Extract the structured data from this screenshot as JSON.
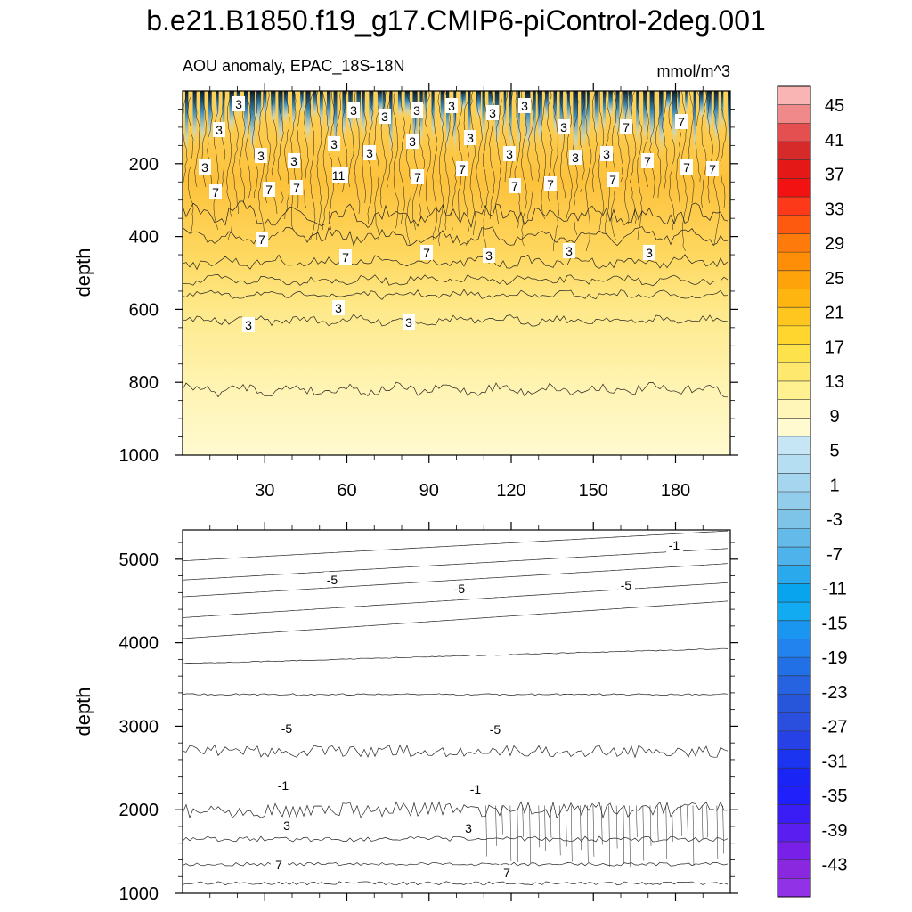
{
  "title": "b.e21.B1850.f19_g17.CMIP6-piControl-2deg.001",
  "chart_data": [
    {
      "type": "heatmap",
      "subtitle_left": "AOU anomaly, EPAC_18S-18N",
      "subtitle_right": "mmol/m^3",
      "ylabel": "depth",
      "ylim": [
        1000,
        0
      ],
      "yticks": [
        "200",
        "400",
        "600",
        "800",
        "1000"
      ],
      "xlim": [
        0,
        200
      ],
      "xticks": [
        "30",
        "60",
        "90",
        "120",
        "150",
        "180"
      ],
      "contour_labels": [
        "3",
        "3",
        "3",
        "3",
        "3",
        "3",
        "3",
        "3",
        "3",
        "3",
        "3",
        "3",
        "3",
        "3",
        "3",
        "3",
        "3",
        "3",
        "3",
        "7",
        "7",
        "7",
        "7",
        "7",
        "7",
        "7",
        "11",
        "7",
        "7",
        "7",
        "7",
        "7",
        "7",
        "7",
        "7",
        "7",
        "3",
        "3",
        "3",
        "3",
        "3",
        "3"
      ]
    },
    {
      "type": "heatmap",
      "ylabel": "depth",
      "ylim": [
        5350,
        1000
      ],
      "yticks": [
        "1000",
        "2000",
        "3000",
        "4000",
        "5000"
      ],
      "xlim": [
        0,
        200
      ],
      "contour_labels": [
        "-1",
        "-5",
        "-5",
        "-5",
        "-5",
        "-5",
        "-1",
        "-1",
        "3",
        "3",
        "7",
        "7"
      ]
    }
  ],
  "colorbar": {
    "labels": [
      "45",
      "41",
      "37",
      "33",
      "29",
      "25",
      "21",
      "17",
      "13",
      "9",
      "5",
      "1",
      "-3",
      "-7",
      "-11",
      "-15",
      "-19",
      "-23",
      "-27",
      "-31",
      "-35",
      "-39",
      "-43"
    ],
    "colors": [
      "#f9b4b4",
      "#f08a8a",
      "#e45050",
      "#d62a2a",
      "#e51818",
      "#f21212",
      "#fc3a1a",
      "#fd5a10",
      "#fe7a0a",
      "#fe8e08",
      "#fea30a",
      "#feb510",
      "#fec61e",
      "#fed62e",
      "#fee24c",
      "#fee96e",
      "#fff090",
      "#fff6b8",
      "#fffad0",
      "#c6e6f5",
      "#b6def2",
      "#a6d6ef",
      "#92cdec",
      "#7ec4e9",
      "#64bbe9",
      "#4db3ea",
      "#2aa9ec",
      "#08a4ee",
      "#12aaf0",
      "#1a96f0",
      "#2282ee",
      "#2270e6",
      "#2563e1",
      "#2856db",
      "#2a4edd",
      "#2642e6",
      "#1a34ef",
      "#1a24f5",
      "#2020fb",
      "#3a1cf5",
      "#5a1ef0",
      "#7820e8",
      "#8a28e0",
      "#9232e6"
    ]
  }
}
